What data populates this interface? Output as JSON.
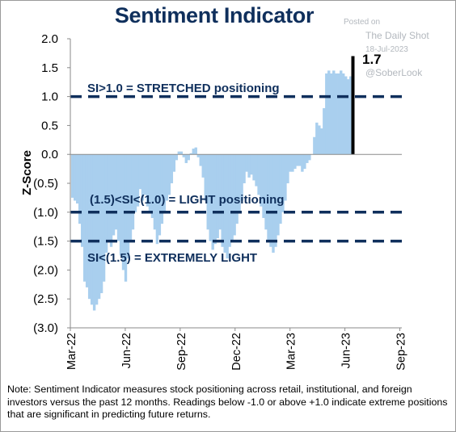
{
  "watermark": {
    "line1": "Posted on",
    "line2": "The Daily Shot",
    "line3": "18-Jul-2023",
    "line4": "@SoberLook"
  },
  "note": "Note: Sentiment Indicator measures stock positioning across retail, institutional, and foreign investors versus the past 12 months. Readings below -1.0 or above +1.0 indicate extreme positions that are significant in predicting future returns.",
  "colors": {
    "bars": "#a9cfee",
    "threshold_lines": "#0f2f5c",
    "last_bar": "#000000",
    "title": "#0f2f5c"
  },
  "chart_data": {
    "type": "bar",
    "title": "Sentiment Indicator",
    "ylabel": "Z-Score",
    "xlabel": "",
    "ylim": [
      -3.0,
      2.0
    ],
    "y_ticks": [
      2.0,
      1.5,
      1.0,
      0.5,
      0.0,
      -0.5,
      -1.0,
      -1.5,
      -2.0,
      -2.5,
      -3.0
    ],
    "y_tick_labels": [
      "2.0",
      "1.5",
      "1.0",
      "0.5",
      "0.0",
      "(0.5)",
      "(1.0)",
      "(1.5)",
      "(2.0)",
      "(2.5)",
      "(3.0)"
    ],
    "x_tick_labels": [
      "Mar-22",
      "Jun-22",
      "Sep-22",
      "Dec-22",
      "Mar-23",
      "Jun-23",
      "Sep-23"
    ],
    "grid": false,
    "threshold_lines": [
      {
        "value": 1.0,
        "label": "SI>1.0 = STRETCHED positioning"
      },
      {
        "value": -1.0,
        "label": "(1.5)<SI<(1.0) = LIGHT positioning"
      },
      {
        "value": -1.5,
        "label": "SI<(1.5) = EXTREMELY LIGHT"
      }
    ],
    "last_value": 1.7,
    "last_value_label": "1.7",
    "series": [
      {
        "values": [
          -0.75,
          -0.8,
          -0.85,
          -1.2,
          -1.6,
          -2.2,
          -2.3,
          -2.5,
          -2.6,
          -2.7,
          -2.6,
          -2.5,
          -2.4,
          -2.2,
          -1.7,
          -1.5,
          -1.6,
          -1.4,
          -1.3,
          -1.5,
          -1.75,
          -2.0,
          -2.2,
          -1.8,
          -1.5,
          -1.3,
          -1.0,
          -0.9,
          -0.6,
          -0.8,
          -0.7,
          -0.9,
          -1.0,
          -1.1,
          -1.3,
          -1.55,
          -1.4,
          -1.2,
          -1.0,
          -0.8,
          -0.7,
          -0.5,
          -0.3,
          -0.1,
          0.05,
          0.05,
          -0.05,
          -0.15,
          -0.1,
          0.02,
          0.1,
          0.12,
          -0.05,
          -0.2,
          -0.4,
          -0.8,
          -1.3,
          -1.5,
          -1.65,
          -1.55,
          -1.45,
          -1.3,
          -1.6,
          -1.7,
          -1.8,
          -1.6,
          -1.5,
          -1.4,
          -1.2,
          -1.0,
          -0.8,
          -0.5,
          -0.3,
          -0.4,
          -0.35,
          -0.45,
          -0.55,
          -0.7,
          -0.9,
          -1.1,
          -1.3,
          -1.5,
          -1.6,
          -1.7,
          -1.6,
          -1.4,
          -1.2,
          -1.0,
          -0.8,
          -0.5,
          -0.3,
          -0.3,
          -0.25,
          -0.2,
          -0.2,
          -0.3,
          -0.25,
          -0.15,
          -0.1,
          0.0,
          0.3,
          0.55,
          0.5,
          0.45,
          0.8,
          1.4,
          1.45,
          1.4,
          1.45,
          1.4,
          1.4,
          1.45,
          1.4,
          1.35,
          1.3,
          1.35,
          1.7
        ]
      }
    ]
  }
}
